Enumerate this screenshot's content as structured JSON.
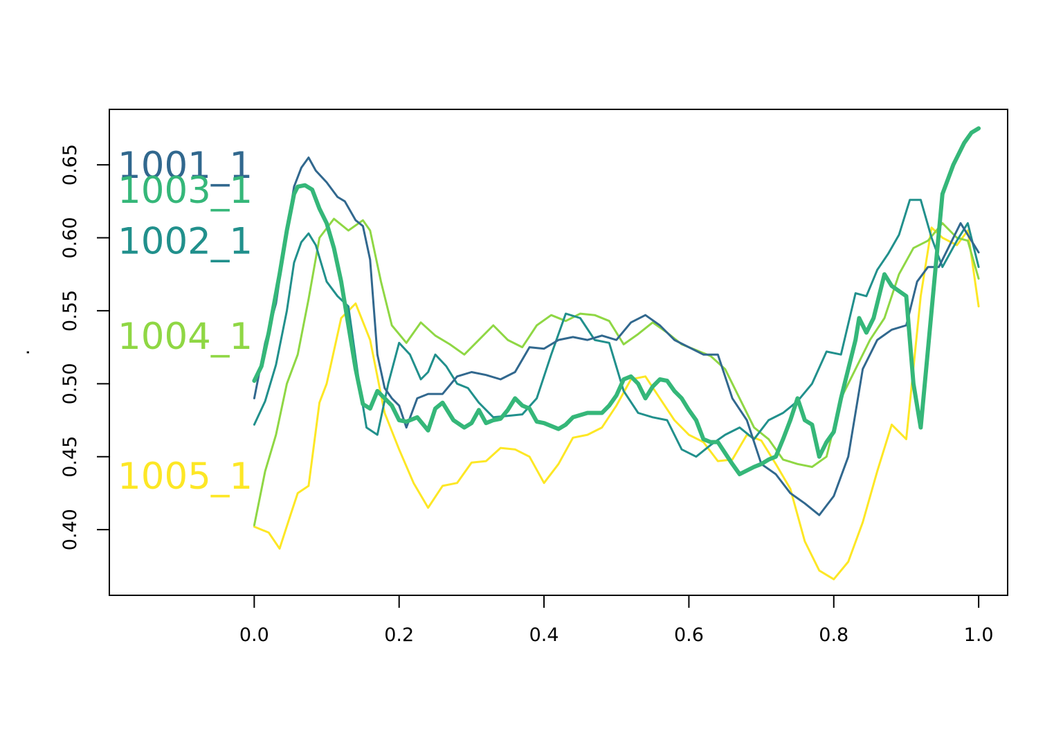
{
  "chart_data": {
    "type": "line",
    "title": "",
    "xlabel": "",
    "ylabel": ".",
    "xlim": [
      -0.2,
      1.04
    ],
    "ylim": [
      0.355,
      0.688
    ],
    "xticks": [
      0.0,
      0.2,
      0.4,
      0.6,
      0.8,
      1.0
    ],
    "xtick_labels": [
      "0.0",
      "0.2",
      "0.4",
      "0.6",
      "0.8",
      "1.0"
    ],
    "yticks": [
      0.4,
      0.45,
      0.5,
      0.55,
      0.6,
      0.65
    ],
    "ytick_labels": [
      "0.40",
      "0.45",
      "0.50",
      "0.55",
      "0.60",
      "0.65"
    ],
    "grid": false,
    "legend": "inline labels at left",
    "series": [
      {
        "name": "1005_1",
        "color": "#FDE725",
        "label_y": 0.437,
        "line_width": 3,
        "x": [
          0,
          0.02,
          0.035,
          0.05,
          0.06,
          0.075,
          0.09,
          0.1,
          0.12,
          0.14,
          0.16,
          0.18,
          0.2,
          0.22,
          0.24,
          0.26,
          0.28,
          0.3,
          0.32,
          0.34,
          0.36,
          0.38,
          0.4,
          0.42,
          0.44,
          0.46,
          0.48,
          0.5,
          0.52,
          0.54,
          0.56,
          0.58,
          0.6,
          0.62,
          0.64,
          0.66,
          0.68,
          0.7,
          0.72,
          0.74,
          0.76,
          0.78,
          0.8,
          0.82,
          0.84,
          0.86,
          0.88,
          0.9,
          0.92,
          0.935,
          0.95,
          0.97,
          0.985,
          1.0
        ],
        "y": [
          0.402,
          0.398,
          0.387,
          0.41,
          0.425,
          0.43,
          0.487,
          0.5,
          0.545,
          0.555,
          0.53,
          0.48,
          0.455,
          0.432,
          0.415,
          0.43,
          0.432,
          0.446,
          0.447,
          0.456,
          0.455,
          0.45,
          0.432,
          0.445,
          0.463,
          0.465,
          0.47,
          0.485,
          0.503,
          0.505,
          0.49,
          0.475,
          0.465,
          0.46,
          0.447,
          0.448,
          0.465,
          0.461,
          0.445,
          0.428,
          0.392,
          0.372,
          0.366,
          0.378,
          0.405,
          0.44,
          0.472,
          0.462,
          0.56,
          0.607,
          0.6,
          0.595,
          0.605,
          0.553
        ]
      },
      {
        "name": "1004_1",
        "color": "#8FD744",
        "label_y": 0.533,
        "line_width": 3,
        "x": [
          0,
          0.015,
          0.03,
          0.045,
          0.06,
          0.075,
          0.09,
          0.11,
          0.13,
          0.15,
          0.16,
          0.175,
          0.19,
          0.21,
          0.23,
          0.25,
          0.27,
          0.29,
          0.31,
          0.33,
          0.35,
          0.37,
          0.39,
          0.41,
          0.43,
          0.45,
          0.47,
          0.49,
          0.51,
          0.53,
          0.55,
          0.57,
          0.59,
          0.61,
          0.63,
          0.65,
          0.67,
          0.69,
          0.71,
          0.73,
          0.75,
          0.77,
          0.79,
          0.81,
          0.83,
          0.85,
          0.87,
          0.89,
          0.91,
          0.93,
          0.95,
          0.97,
          0.985,
          1.0
        ],
        "y": [
          0.403,
          0.44,
          0.465,
          0.5,
          0.52,
          0.558,
          0.6,
          0.613,
          0.605,
          0.612,
          0.605,
          0.57,
          0.54,
          0.528,
          0.542,
          0.533,
          0.527,
          0.52,
          0.53,
          0.54,
          0.53,
          0.525,
          0.54,
          0.547,
          0.543,
          0.548,
          0.547,
          0.543,
          0.527,
          0.534,
          0.542,
          0.535,
          0.527,
          0.523,
          0.519,
          0.51,
          0.49,
          0.47,
          0.462,
          0.448,
          0.445,
          0.443,
          0.45,
          0.49,
          0.51,
          0.53,
          0.545,
          0.575,
          0.593,
          0.598,
          0.61,
          0.6,
          0.598,
          0.572
        ]
      },
      {
        "name": "1002_1",
        "color": "#21908C",
        "label_y": 0.598,
        "line_width": 3,
        "x": [
          0,
          0.015,
          0.03,
          0.045,
          0.055,
          0.065,
          0.075,
          0.085,
          0.1,
          0.115,
          0.13,
          0.145,
          0.155,
          0.17,
          0.185,
          0.2,
          0.215,
          0.23,
          0.24,
          0.25,
          0.265,
          0.28,
          0.295,
          0.31,
          0.33,
          0.35,
          0.37,
          0.39,
          0.41,
          0.43,
          0.45,
          0.47,
          0.49,
          0.51,
          0.53,
          0.55,
          0.57,
          0.59,
          0.61,
          0.63,
          0.65,
          0.67,
          0.69,
          0.71,
          0.73,
          0.75,
          0.77,
          0.79,
          0.81,
          0.83,
          0.845,
          0.86,
          0.875,
          0.89,
          0.905,
          0.92,
          0.935,
          0.95,
          0.97,
          0.985,
          1.0
        ],
        "y": [
          0.472,
          0.488,
          0.513,
          0.55,
          0.583,
          0.597,
          0.603,
          0.595,
          0.57,
          0.56,
          0.553,
          0.5,
          0.47,
          0.465,
          0.5,
          0.528,
          0.52,
          0.503,
          0.508,
          0.52,
          0.512,
          0.5,
          0.497,
          0.487,
          0.477,
          0.478,
          0.479,
          0.49,
          0.52,
          0.548,
          0.545,
          0.53,
          0.528,
          0.495,
          0.48,
          0.477,
          0.475,
          0.455,
          0.45,
          0.458,
          0.465,
          0.47,
          0.462,
          0.475,
          0.48,
          0.488,
          0.5,
          0.522,
          0.52,
          0.562,
          0.56,
          0.578,
          0.589,
          0.602,
          0.626,
          0.626,
          0.6,
          0.58,
          0.598,
          0.61,
          0.58
        ]
      },
      {
        "name": "1001_1",
        "color": "#31688E",
        "label_y": 0.65,
        "line_width": 3,
        "x": [
          0,
          0.015,
          0.03,
          0.045,
          0.055,
          0.065,
          0.075,
          0.085,
          0.1,
          0.115,
          0.125,
          0.14,
          0.15,
          0.16,
          0.17,
          0.18,
          0.19,
          0.2,
          0.21,
          0.225,
          0.24,
          0.26,
          0.28,
          0.3,
          0.32,
          0.34,
          0.36,
          0.38,
          0.4,
          0.42,
          0.44,
          0.46,
          0.48,
          0.5,
          0.52,
          0.54,
          0.56,
          0.58,
          0.6,
          0.62,
          0.64,
          0.66,
          0.68,
          0.7,
          0.72,
          0.74,
          0.76,
          0.78,
          0.8,
          0.82,
          0.84,
          0.86,
          0.88,
          0.9,
          0.915,
          0.93,
          0.945,
          0.96,
          0.975,
          0.99,
          1.0
        ],
        "y": [
          0.49,
          0.528,
          0.555,
          0.605,
          0.635,
          0.648,
          0.655,
          0.646,
          0.638,
          0.628,
          0.625,
          0.612,
          0.608,
          0.585,
          0.52,
          0.497,
          0.49,
          0.485,
          0.47,
          0.49,
          0.493,
          0.493,
          0.505,
          0.508,
          0.506,
          0.503,
          0.508,
          0.525,
          0.524,
          0.53,
          0.532,
          0.53,
          0.533,
          0.53,
          0.542,
          0.547,
          0.54,
          0.53,
          0.525,
          0.52,
          0.52,
          0.49,
          0.475,
          0.445,
          0.438,
          0.425,
          0.418,
          0.41,
          0.423,
          0.45,
          0.51,
          0.53,
          0.537,
          0.54,
          0.57,
          0.58,
          0.58,
          0.595,
          0.61,
          0.598,
          0.59
        ]
      },
      {
        "name": "1003_1",
        "color": "#35B779",
        "label_y": 0.633,
        "line_width": 6,
        "x": [
          0,
          0.01,
          0.02,
          0.035,
          0.045,
          0.055,
          0.06,
          0.07,
          0.08,
          0.09,
          0.1,
          0.11,
          0.12,
          0.13,
          0.14,
          0.15,
          0.16,
          0.17,
          0.18,
          0.19,
          0.2,
          0.21,
          0.225,
          0.24,
          0.25,
          0.26,
          0.275,
          0.29,
          0.3,
          0.31,
          0.32,
          0.33,
          0.34,
          0.35,
          0.36,
          0.37,
          0.38,
          0.39,
          0.4,
          0.42,
          0.43,
          0.44,
          0.46,
          0.48,
          0.49,
          0.5,
          0.51,
          0.52,
          0.53,
          0.54,
          0.55,
          0.56,
          0.57,
          0.58,
          0.59,
          0.6,
          0.61,
          0.62,
          0.63,
          0.64,
          0.66,
          0.67,
          0.69,
          0.7,
          0.71,
          0.72,
          0.73,
          0.74,
          0.75,
          0.76,
          0.77,
          0.78,
          0.79,
          0.8,
          0.81,
          0.82,
          0.83,
          0.835,
          0.845,
          0.855,
          0.87,
          0.88,
          0.9,
          0.91,
          0.92,
          0.935,
          0.95,
          0.965,
          0.98,
          0.99,
          1.0
        ],
        "y": [
          0.502,
          0.512,
          0.535,
          0.575,
          0.605,
          0.63,
          0.635,
          0.636,
          0.633,
          0.62,
          0.61,
          0.593,
          0.57,
          0.54,
          0.51,
          0.486,
          0.483,
          0.495,
          0.49,
          0.485,
          0.475,
          0.474,
          0.477,
          0.468,
          0.483,
          0.487,
          0.475,
          0.47,
          0.473,
          0.482,
          0.473,
          0.475,
          0.476,
          0.482,
          0.49,
          0.485,
          0.483,
          0.474,
          0.473,
          0.469,
          0.472,
          0.477,
          0.48,
          0.48,
          0.485,
          0.492,
          0.503,
          0.505,
          0.5,
          0.49,
          0.498,
          0.503,
          0.502,
          0.495,
          0.49,
          0.482,
          0.475,
          0.462,
          0.46,
          0.46,
          0.445,
          0.438,
          0.443,
          0.445,
          0.448,
          0.45,
          0.462,
          0.475,
          0.49,
          0.475,
          0.472,
          0.45,
          0.46,
          0.467,
          0.49,
          0.51,
          0.53,
          0.545,
          0.535,
          0.545,
          0.575,
          0.567,
          0.56,
          0.5,
          0.47,
          0.55,
          0.63,
          0.65,
          0.665,
          0.672,
          0.675
        ]
      }
    ]
  }
}
